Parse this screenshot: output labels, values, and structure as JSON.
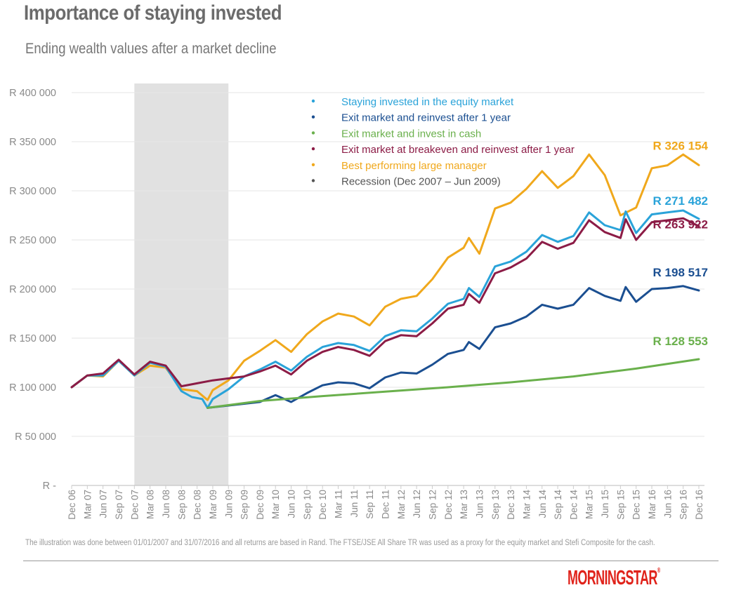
{
  "header": {
    "title": "Importance of staying invested",
    "subtitle": "Ending wealth values after a market decline"
  },
  "footnote": "The illustration was done between 01/01/2007 and 31/07/2016 and all returns are based in Rand. The FTSE/JSE All Share TR was used as a proxy for the equity market and Stefi Composite for the cash.",
  "logo": {
    "text": "MORNINGSTAR",
    "mark": "®"
  },
  "colors": {
    "staying": "#2aa3d9",
    "exit_reinvest": "#1b4f91",
    "cash": "#6ab04c",
    "breakeven": "#8c1c46",
    "best_manager": "#f0a81c",
    "recession": "#555555",
    "recession_fill": "#e1e1e1",
    "grid": "#e6e6e6"
  },
  "chart_data": {
    "type": "line",
    "ylim": [
      0,
      400000
    ],
    "yticks": [
      0,
      50000,
      100000,
      150000,
      200000,
      250000,
      300000,
      350000,
      400000
    ],
    "ytick_labels": [
      "R -",
      "R 50 000",
      "R 100 000",
      "R 150 000",
      "R 200 000",
      "R 250 000",
      "R 300 000",
      "R 350 000",
      "R 400 000"
    ],
    "x_tick_labels": [
      "Dec 06",
      "Mar 07",
      "Jun 07",
      "Sep 07",
      "Dec 07",
      "Mar 08",
      "Jun 08",
      "Sep 08",
      "Dec 08",
      "Mar 09",
      "Jun 09",
      "Sep 09",
      "Dec 09",
      "Mar 10",
      "Jun 10",
      "Sep 10",
      "Dec 10",
      "Mar 11",
      "Jun 11",
      "Sep 11",
      "Dec 11",
      "Mar 12",
      "Jun 12",
      "Sep 12",
      "Dec 12",
      "Mar 13",
      "Jun 13",
      "Sep 13",
      "Dec 13",
      "Mar 14",
      "Jun 14",
      "Sep 14",
      "Dec 14",
      "Mar 15",
      "Jun 15",
      "Sep 15",
      "Dec 15",
      "Mar 16",
      "Jun 16",
      "Sep 16",
      "Dec 16"
    ],
    "recession_band": {
      "label": "Recession (Dec 2007 – Jun 2009)",
      "start": "Dec 07",
      "end": "Jun 09"
    },
    "legend_position": "top-center",
    "grid": true,
    "series": [
      {
        "key": "best_manager",
        "name": "Best performing large manager",
        "end_label": "R 326 154",
        "points": [
          [
            "Dec 06",
            100000
          ],
          [
            "Mar 07",
            112000
          ],
          [
            "Jun 07",
            111000
          ],
          [
            "Sep 07",
            127000
          ],
          [
            "Dec 07",
            112000
          ],
          [
            "Mar 08",
            122000
          ],
          [
            "Jun 08",
            120000
          ],
          [
            "Sep 08",
            98000
          ],
          [
            "Dec 08",
            96000
          ],
          [
            "Feb 09",
            87000
          ],
          [
            "Mar 09",
            97000
          ],
          [
            "Jun 09",
            107000
          ],
          [
            "Sep 09",
            127000
          ],
          [
            "Dec 09",
            137000
          ],
          [
            "Mar 10",
            148000
          ],
          [
            "Jun 10",
            136000
          ],
          [
            "Sep 10",
            154000
          ],
          [
            "Dec 10",
            167000
          ],
          [
            "Mar 11",
            175000
          ],
          [
            "Jun 11",
            172000
          ],
          [
            "Sep 11",
            163000
          ],
          [
            "Dec 11",
            182000
          ],
          [
            "Mar 12",
            190000
          ],
          [
            "Jun 12",
            193000
          ],
          [
            "Sep 12",
            210000
          ],
          [
            "Dec 12",
            232000
          ],
          [
            "Mar 13",
            242000
          ],
          [
            "Apr 13",
            252000
          ],
          [
            "Jun 13",
            236000
          ],
          [
            "Sep 13",
            282000
          ],
          [
            "Dec 13",
            288000
          ],
          [
            "Mar 14",
            302000
          ],
          [
            "Jun 14",
            320000
          ],
          [
            "Sep 14",
            303000
          ],
          [
            "Dec 14",
            315000
          ],
          [
            "Mar 15",
            337000
          ],
          [
            "Jun 15",
            316000
          ],
          [
            "Sep 15",
            275000
          ],
          [
            "Dec 15",
            283000
          ],
          [
            "Mar 16",
            323000
          ],
          [
            "Jun 16",
            326000
          ],
          [
            "Sep 16",
            337000
          ],
          [
            "Dec 16",
            326154
          ]
        ]
      },
      {
        "key": "staying",
        "name": "Staying invested in the equity market",
        "end_label": "R 271 482",
        "points": [
          [
            "Dec 06",
            100000
          ],
          [
            "Mar 07",
            112000
          ],
          [
            "Jun 07",
            112000
          ],
          [
            "Sep 07",
            127000
          ],
          [
            "Dec 07",
            112000
          ],
          [
            "Mar 08",
            125000
          ],
          [
            "Jun 08",
            121000
          ],
          [
            "Sep 08",
            96000
          ],
          [
            "Nov 08",
            90000
          ],
          [
            "Jan 09",
            88000
          ],
          [
            "Feb 09",
            79000
          ],
          [
            "Mar 09",
            88000
          ],
          [
            "Jun 09",
            98000
          ],
          [
            "Sep 09",
            111000
          ],
          [
            "Dec 09",
            118000
          ],
          [
            "Mar 10",
            126000
          ],
          [
            "Jun 10",
            117000
          ],
          [
            "Sep 10",
            131000
          ],
          [
            "Dec 10",
            141000
          ],
          [
            "Mar 11",
            145000
          ],
          [
            "Jun 11",
            143000
          ],
          [
            "Sep 11",
            137000
          ],
          [
            "Dec 11",
            152000
          ],
          [
            "Mar 12",
            158000
          ],
          [
            "Jun 12",
            157000
          ],
          [
            "Sep 12",
            170000
          ],
          [
            "Dec 12",
            185000
          ],
          [
            "Mar 13",
            190000
          ],
          [
            "Apr 13",
            201000
          ],
          [
            "Jun 13",
            192000
          ],
          [
            "Sep 13",
            223000
          ],
          [
            "Dec 13",
            228000
          ],
          [
            "Mar 14",
            238000
          ],
          [
            "Jun 14",
            255000
          ],
          [
            "Sep 14",
            248000
          ],
          [
            "Dec 14",
            254000
          ],
          [
            "Mar 15",
            278000
          ],
          [
            "Jun 15",
            265000
          ],
          [
            "Sep 15",
            260000
          ],
          [
            "Oct 15",
            279000
          ],
          [
            "Dec 15",
            257000
          ],
          [
            "Mar 16",
            276000
          ],
          [
            "Jun 16",
            278000
          ],
          [
            "Sep 16",
            280000
          ],
          [
            "Dec 16",
            271482
          ]
        ]
      },
      {
        "key": "breakeven",
        "name": "Exit market at breakeven and reinvest after 1 year",
        "end_label": "R 263 922",
        "points": [
          [
            "Dec 06",
            100000
          ],
          [
            "Mar 07",
            112000
          ],
          [
            "Jun 07",
            114000
          ],
          [
            "Sep 07",
            128000
          ],
          [
            "Dec 07",
            113000
          ],
          [
            "Mar 08",
            126000
          ],
          [
            "Jun 08",
            122000
          ],
          [
            "Sep 08",
            101000
          ],
          [
            "Dec 08",
            104000
          ],
          [
            "Mar 09",
            107000
          ],
          [
            "Jun 09",
            109000
          ],
          [
            "Sep 09",
            111000
          ],
          [
            "Dec 09",
            116000
          ],
          [
            "Mar 10",
            122000
          ],
          [
            "Jun 10",
            113000
          ],
          [
            "Sep 10",
            127000
          ],
          [
            "Dec 10",
            136000
          ],
          [
            "Mar 11",
            141000
          ],
          [
            "Jun 11",
            138000
          ],
          [
            "Sep 11",
            132000
          ],
          [
            "Dec 11",
            147000
          ],
          [
            "Mar 12",
            153000
          ],
          [
            "Jun 12",
            152000
          ],
          [
            "Sep 12",
            165000
          ],
          [
            "Dec 12",
            180000
          ],
          [
            "Mar 13",
            184000
          ],
          [
            "Apr 13",
            195000
          ],
          [
            "Jun 13",
            186000
          ],
          [
            "Sep 13",
            216000
          ],
          [
            "Dec 13",
            222000
          ],
          [
            "Mar 14",
            231000
          ],
          [
            "Jun 14",
            248000
          ],
          [
            "Sep 14",
            241000
          ],
          [
            "Dec 14",
            247000
          ],
          [
            "Mar 15",
            270000
          ],
          [
            "Jun 15",
            258000
          ],
          [
            "Sep 15",
            252000
          ],
          [
            "Oct 15",
            271000
          ],
          [
            "Dec 15",
            250000
          ],
          [
            "Mar 16",
            268000
          ],
          [
            "Jun 16",
            270000
          ],
          [
            "Sep 16",
            272000
          ],
          [
            "Dec 16",
            263922
          ]
        ]
      },
      {
        "key": "exit_reinvest",
        "name": "Exit market and reinvest after 1 year",
        "end_label": "R 198 517",
        "points": [
          [
            "Feb 09",
            79000
          ],
          [
            "Dec 09",
            85000
          ],
          [
            "Mar 10",
            92000
          ],
          [
            "Jun 10",
            85000
          ],
          [
            "Sep 10",
            94000
          ],
          [
            "Dec 10",
            102000
          ],
          [
            "Mar 11",
            105000
          ],
          [
            "Jun 11",
            104000
          ],
          [
            "Sep 11",
            99000
          ],
          [
            "Dec 11",
            110000
          ],
          [
            "Mar 12",
            115000
          ],
          [
            "Jun 12",
            114000
          ],
          [
            "Sep 12",
            123000
          ],
          [
            "Dec 12",
            134000
          ],
          [
            "Mar 13",
            138000
          ],
          [
            "Apr 13",
            146000
          ],
          [
            "Jun 13",
            139000
          ],
          [
            "Sep 13",
            161000
          ],
          [
            "Dec 13",
            165000
          ],
          [
            "Mar 14",
            172000
          ],
          [
            "Jun 14",
            184000
          ],
          [
            "Sep 14",
            180000
          ],
          [
            "Dec 14",
            184000
          ],
          [
            "Mar 15",
            201000
          ],
          [
            "Jun 15",
            193000
          ],
          [
            "Sep 15",
            188000
          ],
          [
            "Oct 15",
            202000
          ],
          [
            "Dec 15",
            187000
          ],
          [
            "Mar 16",
            200000
          ],
          [
            "Jun 16",
            201000
          ],
          [
            "Sep 16",
            203000
          ],
          [
            "Dec 16",
            198517
          ]
        ]
      },
      {
        "key": "cash",
        "name": "Exit market and invest in cash",
        "end_label": "R 128 553",
        "points": [
          [
            "Feb 09",
            79000
          ],
          [
            "Dec 09",
            86000
          ],
          [
            "Dec 10",
            91000
          ],
          [
            "Dec 11",
            95500
          ],
          [
            "Dec 12",
            100000
          ],
          [
            "Dec 13",
            105000
          ],
          [
            "Dec 14",
            111000
          ],
          [
            "Dec 15",
            119000
          ],
          [
            "Dec 16",
            128553
          ]
        ]
      }
    ],
    "legend": [
      {
        "key": "staying",
        "label": "Staying invested in the equity market"
      },
      {
        "key": "exit_reinvest",
        "label": "Exit market and reinvest after 1 year"
      },
      {
        "key": "cash",
        "label": "Exit market and invest in cash"
      },
      {
        "key": "breakeven",
        "label": "Exit market at breakeven and reinvest after 1 year"
      },
      {
        "key": "best_manager",
        "label": "Best performing large manager"
      },
      {
        "key": "recession",
        "label": "Recession (Dec 2007 – Jun 2009)"
      }
    ]
  }
}
